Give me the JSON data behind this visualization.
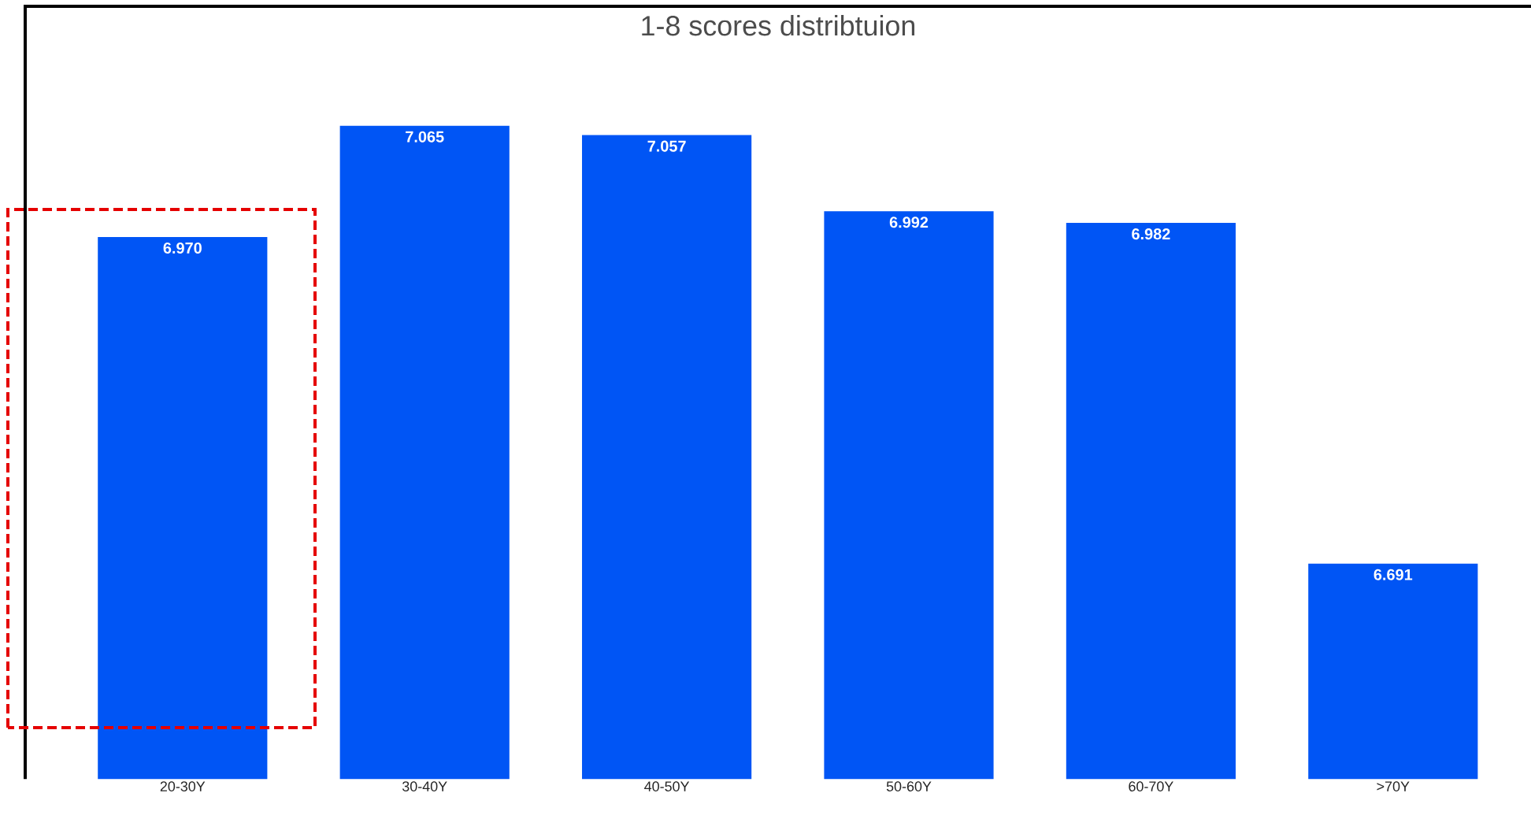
{
  "chart_data": {
    "type": "bar",
    "title": "1-8 scores distribtuion",
    "categories": [
      "20-30Y",
      "30-40Y",
      "40-50Y",
      "50-60Y",
      "60-70Y",
      ">70Y"
    ],
    "values": [
      6.97,
      7.065,
      7.057,
      6.992,
      6.982,
      6.691
    ],
    "value_labels": [
      "6.970",
      "7.065",
      "7.057",
      "6.992",
      "6.982",
      "6.691"
    ],
    "color": "#0055f5",
    "ylim": [
      6.507,
      7.167
    ]
  }
}
